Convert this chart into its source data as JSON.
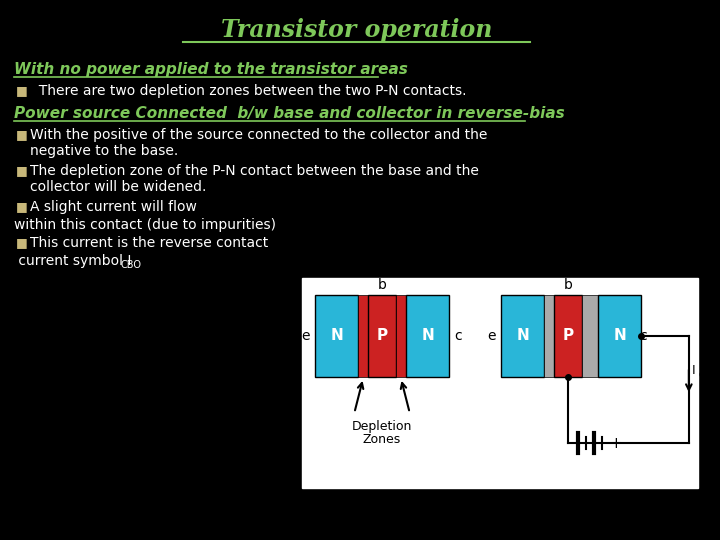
{
  "title": "Transistor operation",
  "title_color": "#7ec85a",
  "bg_color": "#000000",
  "text_color": "#ffffff",
  "green_color": "#7ec85a",
  "tan_color": "#c8b87a",
  "heading1": "With no power applied to the transistor areas",
  "bullet1": "  There are two depletion zones between the two P-N contacts.",
  "heading2": "Power source Connected  b/w base and collector in reverse-bias",
  "bullet2a": "With the positive of the source connected to the collector and the",
  "bullet2b": "negative to the base.",
  "bullet3a": "The depletion zone of the P-N contact between the base and the",
  "bullet3b": "collector will be widened.",
  "bullet4": "A slight current will flow",
  "line5": "within this contact (due to impurities)",
  "bullet5": "This current is the reverse contact",
  "line6": " current symbol I",
  "line6sub": "CBO",
  "cyan_color": "#29b6d8",
  "red_color": "#cc2222",
  "gray_color": "#aaaaaa"
}
